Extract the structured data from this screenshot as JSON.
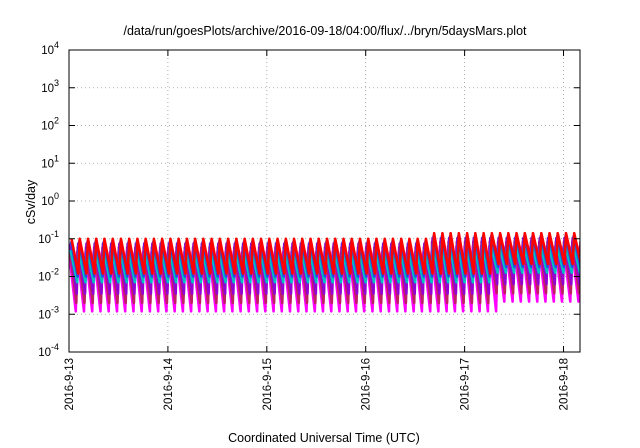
{
  "chart_data": {
    "type": "line",
    "title": "/data/run/goesPlots/archive/2016-09-18/04:00/flux/../bryn/5daysMars.plot",
    "xlabel": "Coordinated Universal Time (UTC)",
    "ylabel": "cSv/day",
    "yscale": "log",
    "ylim": [
      0.0001,
      10000
    ],
    "xlim": [
      "2016-09-13T00:00",
      "2016-09-18T04:00"
    ],
    "grid": true,
    "y_ticks": [
      {
        "value": 0.0001,
        "base": "10",
        "exp": "-4"
      },
      {
        "value": 0.001,
        "base": "10",
        "exp": "-3"
      },
      {
        "value": 0.01,
        "base": "10",
        "exp": "-2"
      },
      {
        "value": 0.1,
        "base": "10",
        "exp": "-1"
      },
      {
        "value": 1,
        "base": "10",
        "exp": "0"
      },
      {
        "value": 10,
        "base": "10",
        "exp": "1"
      },
      {
        "value": 100,
        "base": "10",
        "exp": "2"
      },
      {
        "value": 1000,
        "base": "10",
        "exp": "3"
      },
      {
        "value": 10000,
        "base": "10",
        "exp": "4"
      }
    ],
    "x_ticks": [
      "2016-9-13",
      "2016-9-14",
      "2016-9-15",
      "2016-9-16",
      "2016-9-17",
      "2016-9-18"
    ],
    "sawtooth_period_hours": 2,
    "series": [
      {
        "color": "#ff00ff",
        "peak": 0.045,
        "trough": 0.0012
      },
      {
        "color": "#c02060",
        "peak": 0.06,
        "trough": 0.002
      },
      {
        "color": "#9400d3",
        "peak": 0.075,
        "trough": 0.0035
      },
      {
        "color": "#00bfbf",
        "peak": 0.05,
        "trough": 0.007
      },
      {
        "color": "#2050e0",
        "peak": 0.085,
        "trough": 0.01
      },
      {
        "color": "#ff0000",
        "peak": 0.1,
        "trough": 0.012
      }
    ]
  }
}
